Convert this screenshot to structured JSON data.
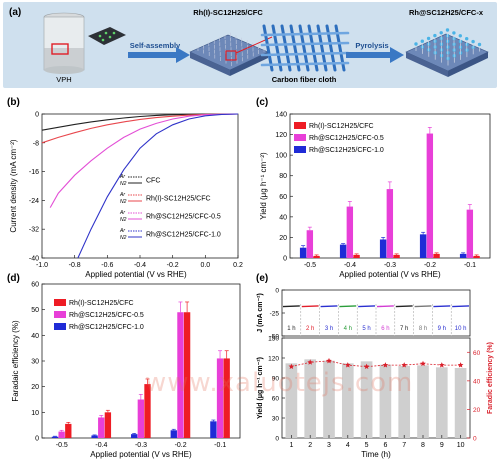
{
  "watermark": "www.xaluotejs.com",
  "panel_a": {
    "letter": "(a)",
    "vial_label": "VPH",
    "step1_label": "Self-assembly",
    "mat1_label": "Rh(I)-SC12H25/CFC",
    "cloth_label": "Carbon fiber cloth",
    "step2_label": "Pyrolysis",
    "mat2_label": "Rh@SC12H25/CFC-x",
    "colors": {
      "banner": "#cfe0ee",
      "arrow": "#3a78c4",
      "vial": "#e8ecee"
    }
  },
  "chart_data": [
    {
      "panel": "(b)",
      "type": "line",
      "xlabel": "Applied potential (V vs RHE)",
      "ylabel": "Current density (mA cm⁻²)",
      "xlim": [
        -1.0,
        0.2
      ],
      "ylim": [
        -40,
        0
      ],
      "xticks": [
        "-1.0",
        "-0.8",
        "-0.6",
        "-0.4",
        "-0.2",
        "0.0",
        "0.2"
      ],
      "yticks": [
        "0",
        "-8",
        "-16",
        "-24",
        "-32",
        "-40"
      ],
      "legend_position": "bottom-right",
      "legend_gas_top": "Ar",
      "legend_gas_bottom": "N2",
      "series": [
        {
          "name": "CFC",
          "color": "#222222",
          "x": [
            -1.0,
            -0.9,
            -0.8,
            -0.7,
            -0.6,
            -0.5,
            -0.4,
            -0.3,
            -0.2,
            -0.1,
            0.0,
            0.2
          ],
          "y": [
            -4.5,
            -3.7,
            -2.9,
            -2.2,
            -1.6,
            -1.1,
            -0.7,
            -0.4,
            -0.2,
            -0.1,
            0,
            0
          ]
        },
        {
          "name": "Rh(I)-SC12H25/CFC",
          "color": "#e8474d",
          "x": [
            -1.0,
            -0.9,
            -0.8,
            -0.7,
            -0.6,
            -0.5,
            -0.4,
            -0.3,
            -0.2,
            -0.1,
            0.0,
            0.2
          ],
          "y": [
            -8.0,
            -6.5,
            -5.2,
            -4.0,
            -3.0,
            -2.2,
            -1.5,
            -1.0,
            -0.6,
            -0.3,
            -0.1,
            0
          ]
        },
        {
          "name": "Rh@SC12H25/CFC-0.5",
          "color": "#e34fd6",
          "x": [
            -0.95,
            -0.9,
            -0.8,
            -0.7,
            -0.6,
            -0.5,
            -0.4,
            -0.3,
            -0.2,
            -0.1,
            0.0,
            0.2
          ],
          "y": [
            -26,
            -22,
            -17,
            -13,
            -9.5,
            -6.5,
            -4.2,
            -2.6,
            -1.4,
            -0.6,
            -0.2,
            0
          ]
        },
        {
          "name": "Rh@SC12H25/CFC-1.0",
          "color": "#2f33c9",
          "x": [
            -0.78,
            -0.7,
            -0.6,
            -0.5,
            -0.4,
            -0.3,
            -0.2,
            -0.1,
            0.0,
            0.1,
            0.2
          ],
          "y": [
            -40,
            -32,
            -23,
            -15.5,
            -9.5,
            -5.5,
            -3.0,
            -1.4,
            -0.5,
            -0.1,
            0
          ]
        }
      ]
    },
    {
      "panel": "(c)",
      "type": "bar",
      "xlabel": "Applied potential (V vs RHE)",
      "ylabel": "Yield (μg h⁻¹ cm⁻²)",
      "categories": [
        "-0.5",
        "-0.4",
        "-0.3",
        "-0.2",
        "-0.1"
      ],
      "ylim": [
        0,
        140
      ],
      "yticks": [
        "0",
        "20",
        "40",
        "60",
        "80",
        "100",
        "120",
        "140"
      ],
      "legend_position": "top-left",
      "series": [
        {
          "name": "Rh(I)-SC12H25/CFC",
          "color": "#ee1c24",
          "values": [
            2,
            3,
            3,
            4,
            2
          ],
          "errors": [
            1,
            1,
            1,
            1,
            1
          ]
        },
        {
          "name": "Rh@SC12H25/CFC-0.5",
          "color": "#e83fd8",
          "values": [
            27,
            50,
            67,
            121,
            47
          ],
          "errors": [
            3,
            5,
            7,
            6,
            5
          ]
        },
        {
          "name": "Rh@SC12H25/CFC-1.0",
          "color": "#1f2bd6",
          "values": [
            10,
            13,
            18,
            23,
            4
          ],
          "errors": [
            2,
            1,
            2,
            2,
            1
          ]
        }
      ]
    },
    {
      "panel": "(d)",
      "type": "bar",
      "xlabel": "Applied potential (V vs RHE)",
      "ylabel": "Faradaic efficiency (%)",
      "categories": [
        "-0.5",
        "-0.4",
        "-0.3",
        "-0.2",
        "-0.1"
      ],
      "ylim": [
        0,
        60
      ],
      "yticks": [
        "0",
        "10",
        "20",
        "30",
        "40",
        "50",
        "60"
      ],
      "legend_position": "top-left",
      "series": [
        {
          "name": "Rh(I)-SC12H25/CFC",
          "color": "#ee1c24",
          "values": [
            5.5,
            10,
            21,
            49,
            31
          ],
          "errors": [
            0.6,
            0.8,
            2,
            4,
            3
          ]
        },
        {
          "name": "Rh@SC12H25/CFC-0.5",
          "color": "#e83fd8",
          "values": [
            2.5,
            8,
            15,
            49,
            31
          ],
          "errors": [
            0.5,
            0.8,
            2,
            4,
            3
          ]
        },
        {
          "name": "Rh@SC12H25/CFC-1.0",
          "color": "#1f2bd6",
          "values": [
            0.5,
            1,
            1.5,
            3,
            6.5
          ],
          "errors": [
            0.2,
            0.2,
            0.3,
            0.4,
            0.5
          ]
        }
      ]
    },
    {
      "panel": "(e)",
      "type": "bar",
      "xlabel": "Time (h)",
      "ylabel_top": "J (mA cm⁻²)",
      "ylabel_left": "Yield (μg h⁻¹ cm⁻²)",
      "ylabel_right": "Faradic efficiency (%)",
      "categories": [
        "1",
        "2",
        "3",
        "4",
        "5",
        "6",
        "7",
        "8",
        "9",
        "10"
      ],
      "hour_labels": [
        "1 h",
        "2 h",
        "3 h",
        "4 h",
        "5 h",
        "6 h",
        "7 h",
        "8 h",
        "9 h",
        "10 h"
      ],
      "hour_label_colors": [
        "#222222",
        "#e11d2a",
        "#2a2fd0",
        "#2a9d3a",
        "#2a2fd0",
        "#d23bd2",
        "#222222",
        "#777777",
        "#2a2fd0",
        "#2a2fd0"
      ],
      "j_ylim": [
        -50,
        0
      ],
      "j_yticks": [
        "0",
        "-25",
        "-50"
      ],
      "j_value": -18,
      "yield_ylim": [
        0,
        150
      ],
      "yield_yticks": [
        "0",
        "30",
        "60",
        "90",
        "120",
        "150"
      ],
      "yield_values": [
        112,
        118,
        116,
        112,
        115,
        110,
        108,
        109,
        106,
        105
      ],
      "fe_ylim": [
        0,
        70
      ],
      "fe_yticks": [
        "0",
        "20",
        "40",
        "60"
      ],
      "fe_values": [
        50,
        53,
        54,
        51,
        50,
        51,
        51,
        52,
        51,
        51
      ],
      "colors": {
        "bar": "#cfcfcf",
        "fe": "#d91f2a"
      }
    }
  ]
}
